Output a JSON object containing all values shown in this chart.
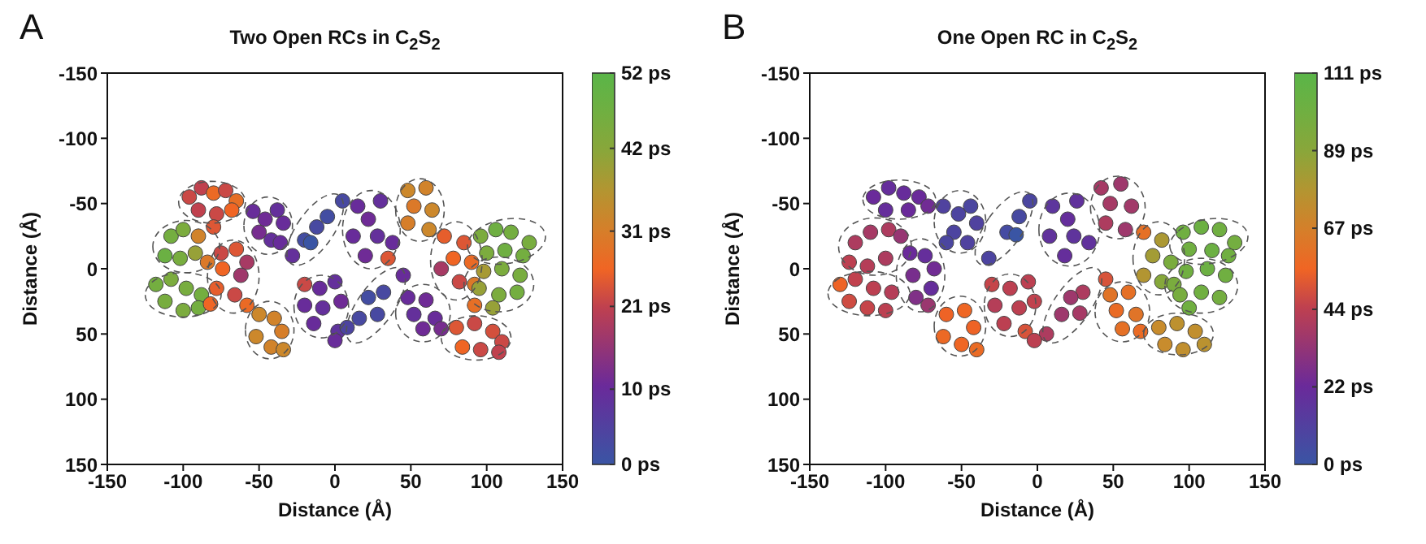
{
  "chart_data": [
    {
      "type": "scatter",
      "title": "Two Open RCs in C$_{2}$S$_{2}$",
      "xlabel": "Distance (Å)",
      "ylabel": "Distance (Å)",
      "annotations": [
        "A"
      ],
      "marker": "circle",
      "x": [
        -96,
        -88,
        -80,
        -72,
        -65,
        -90,
        -78,
        -68,
        -54,
        -46,
        -38,
        -34,
        -50,
        -42,
        -36,
        5,
        -5,
        -12,
        -20,
        -16,
        -28,
        -108,
        -100,
        -90,
        -80,
        -112,
        -102,
        -92,
        -84,
        -75,
        -65,
        -58,
        -74,
        -62,
        -78,
        -66,
        -58,
        -118,
        -108,
        -98,
        -88,
        -112,
        -100,
        -90,
        -82,
        -50,
        -40,
        -35,
        -52,
        -42,
        -34,
        -20,
        -10,
        0,
        -20,
        -8,
        4,
        -14,
        2,
        15,
        30,
        22,
        12,
        28,
        38,
        20,
        35,
        48,
        60,
        52,
        64,
        48,
        62,
        72,
        85,
        78,
        90,
        70,
        82,
        92,
        96,
        106,
        116,
        128,
        100,
        112,
        124,
        98,
        110,
        122,
        95,
        108,
        120,
        92,
        104,
        45,
        32,
        22,
        28,
        16,
        8,
        0,
        48,
        60,
        52,
        66,
        58,
        70,
        80,
        92,
        104,
        110,
        84,
        96,
        108
      ],
      "values": [
        -55,
        -62,
        -58,
        -60,
        -52,
        -45,
        -42,
        -45,
        -44,
        -38,
        -45,
        -35,
        -28,
        -22,
        -20,
        -52,
        -40,
        -32,
        -22,
        -20,
        -10,
        -25,
        -30,
        -25,
        -32,
        -10,
        -8,
        -12,
        -5,
        -12,
        -15,
        -5,
        0,
        5,
        15,
        20,
        28,
        12,
        8,
        15,
        20,
        25,
        32,
        30,
        27,
        35,
        38,
        48,
        52,
        60,
        62,
        12,
        15,
        10,
        28,
        30,
        25,
        42,
        48,
        -48,
        -52,
        -38,
        -25,
        -25,
        -20,
        -10,
        -8,
        -60,
        -62,
        -48,
        -45,
        -35,
        -30,
        -25,
        -20,
        -8,
        -5,
        0,
        10,
        12,
        -25,
        -30,
        -28,
        -20,
        -12,
        -14,
        -10,
        2,
        0,
        5,
        15,
        20,
        18,
        28,
        30,
        5,
        18,
        22,
        35,
        38,
        45,
        55,
        22,
        24,
        35,
        38,
        46,
        46,
        45,
        42,
        48,
        56,
        60,
        62,
        64
      ],
      "cvalues": [
        22,
        21,
        27,
        22,
        28,
        21,
        22,
        26,
        10,
        11,
        9,
        10,
        12,
        9,
        10,
        3,
        2,
        3,
        2,
        0,
        9,
        46,
        44,
        32,
        24,
        48,
        45,
        40,
        30,
        22,
        24,
        18,
        26,
        17,
        25,
        22,
        27,
        46,
        44,
        45,
        46,
        45,
        44,
        46,
        26,
        33,
        32,
        31,
        33,
        32,
        33,
        22,
        10,
        9,
        10,
        9,
        11,
        10,
        8,
        10,
        9,
        11,
        10,
        9,
        10,
        11,
        24,
        33,
        32,
        30,
        33,
        31,
        33,
        25,
        24,
        26,
        27,
        18,
        22,
        30,
        44,
        47,
        46,
        45,
        44,
        47,
        46,
        38,
        44,
        45,
        40,
        44,
        46,
        28,
        40,
        10,
        3,
        2,
        3,
        3,
        4,
        10,
        10,
        11,
        9,
        10,
        11,
        12,
        24,
        22,
        23,
        22,
        26,
        22,
        21
      ],
      "xlim": [
        -150,
        150
      ],
      "xticks": [
        -150,
        -100,
        -50,
        0,
        50,
        100,
        150
      ],
      "ylim": [
        150,
        -150
      ],
      "yticks": [
        -150,
        -100,
        -50,
        0,
        50,
        100,
        150
      ],
      "clim": [
        0,
        52
      ],
      "cticks": [
        {
          "value": 0,
          "label": "0 ps"
        },
        {
          "value": 10,
          "label": "10 ps"
        },
        {
          "value": 21,
          "label": "21 ps"
        },
        {
          "value": 31,
          "label": "31 ps"
        },
        {
          "value": 42,
          "label": "42 ps"
        },
        {
          "value": 52,
          "label": "52 ps"
        }
      ]
    },
    {
      "type": "scatter",
      "title": "One Open RC in C$_{2}$S$_{2}$",
      "xlabel": "Distance (Å)",
      "ylabel": "Distance (Å)",
      "annotations": [
        "B"
      ],
      "marker": "circle",
      "x": [
        -108,
        -98,
        -88,
        -78,
        -72,
        -100,
        -85,
        -62,
        -52,
        -44,
        -40,
        -55,
        -46,
        -60,
        -5,
        -12,
        -20,
        -14,
        -32,
        -120,
        -110,
        -98,
        -90,
        -124,
        -112,
        -100,
        -84,
        -74,
        -68,
        -82,
        -70,
        -80,
        -72,
        -130,
        -120,
        -108,
        -96,
        -124,
        -112,
        -100,
        -60,
        -48,
        -42,
        -62,
        -50,
        -40,
        -30,
        -18,
        -6,
        -28,
        -12,
        -2,
        -22,
        -8,
        10,
        26,
        20,
        8,
        24,
        34,
        18,
        42,
        55,
        48,
        62,
        45,
        58,
        70,
        82,
        76,
        88,
        70,
        82,
        90,
        96,
        108,
        120,
        130,
        100,
        115,
        126,
        98,
        112,
        124,
        94,
        108,
        120,
        100,
        45,
        30,
        22,
        28,
        16,
        6,
        -2,
        48,
        60,
        52,
        65,
        56,
        68,
        80,
        92,
        104,
        110,
        84,
        96
      ],
      "values": [
        -55,
        -62,
        -58,
        -55,
        -48,
        -45,
        -45,
        -48,
        -42,
        -48,
        -35,
        -28,
        -20,
        -20,
        -52,
        -40,
        -28,
        -26,
        -8,
        -20,
        -28,
        -30,
        -25,
        -5,
        -2,
        -8,
        -12,
        -10,
        0,
        5,
        15,
        22,
        28,
        12,
        8,
        15,
        18,
        25,
        30,
        32,
        35,
        32,
        45,
        52,
        58,
        62,
        12,
        15,
        10,
        28,
        30,
        25,
        42,
        48,
        -48,
        -52,
        -38,
        -25,
        -25,
        -20,
        -10,
        -62,
        -65,
        -50,
        -48,
        -35,
        -30,
        -28,
        -22,
        -10,
        -5,
        5,
        10,
        12,
        -28,
        -32,
        -30,
        -20,
        -15,
        -14,
        -10,
        2,
        0,
        5,
        20,
        18,
        22,
        30,
        8,
        18,
        22,
        34,
        35,
        50,
        55,
        20,
        18,
        32,
        35,
        46,
        48,
        45,
        42,
        48,
        58,
        58,
        62
      ],
      "cvalues": [
        22,
        20,
        21,
        22,
        24,
        20,
        22,
        10,
        9,
        8,
        10,
        9,
        10,
        8,
        8,
        6,
        5,
        0,
        9,
        40,
        38,
        40,
        34,
        44,
        42,
        40,
        22,
        20,
        24,
        26,
        20,
        28,
        35,
        55,
        45,
        44,
        42,
        48,
        46,
        44,
        55,
        56,
        55,
        57,
        56,
        58,
        46,
        44,
        44,
        42,
        44,
        45,
        44,
        50,
        16,
        18,
        20,
        18,
        17,
        18,
        20,
        38,
        36,
        38,
        37,
        40,
        36,
        60,
        80,
        82,
        95,
        78,
        90,
        95,
        100,
        102,
        100,
        98,
        100,
        102,
        100,
        100,
        102,
        100,
        96,
        100,
        98,
        100,
        50,
        40,
        36,
        38,
        36,
        40,
        44,
        62,
        60,
        58,
        62,
        60,
        58,
        72,
        75,
        74,
        76,
        72,
        74
      ],
      "xlim": [
        -150,
        150
      ],
      "xticks": [
        -150,
        -100,
        -50,
        0,
        50,
        100,
        150
      ],
      "ylim": [
        150,
        -150
      ],
      "yticks": [
        -150,
        -100,
        -50,
        0,
        50,
        100,
        150
      ],
      "clim": [
        0,
        111
      ],
      "cticks": [
        {
          "value": 0,
          "label": "0 ps"
        },
        {
          "value": 22,
          "label": "22 ps"
        },
        {
          "value": 44,
          "label": "44 ps"
        },
        {
          "value": 67,
          "label": "67 ps"
        },
        {
          "value": 89,
          "label": "89 ps"
        },
        {
          "value": 111,
          "label": "111 ps"
        }
      ]
    }
  ]
}
